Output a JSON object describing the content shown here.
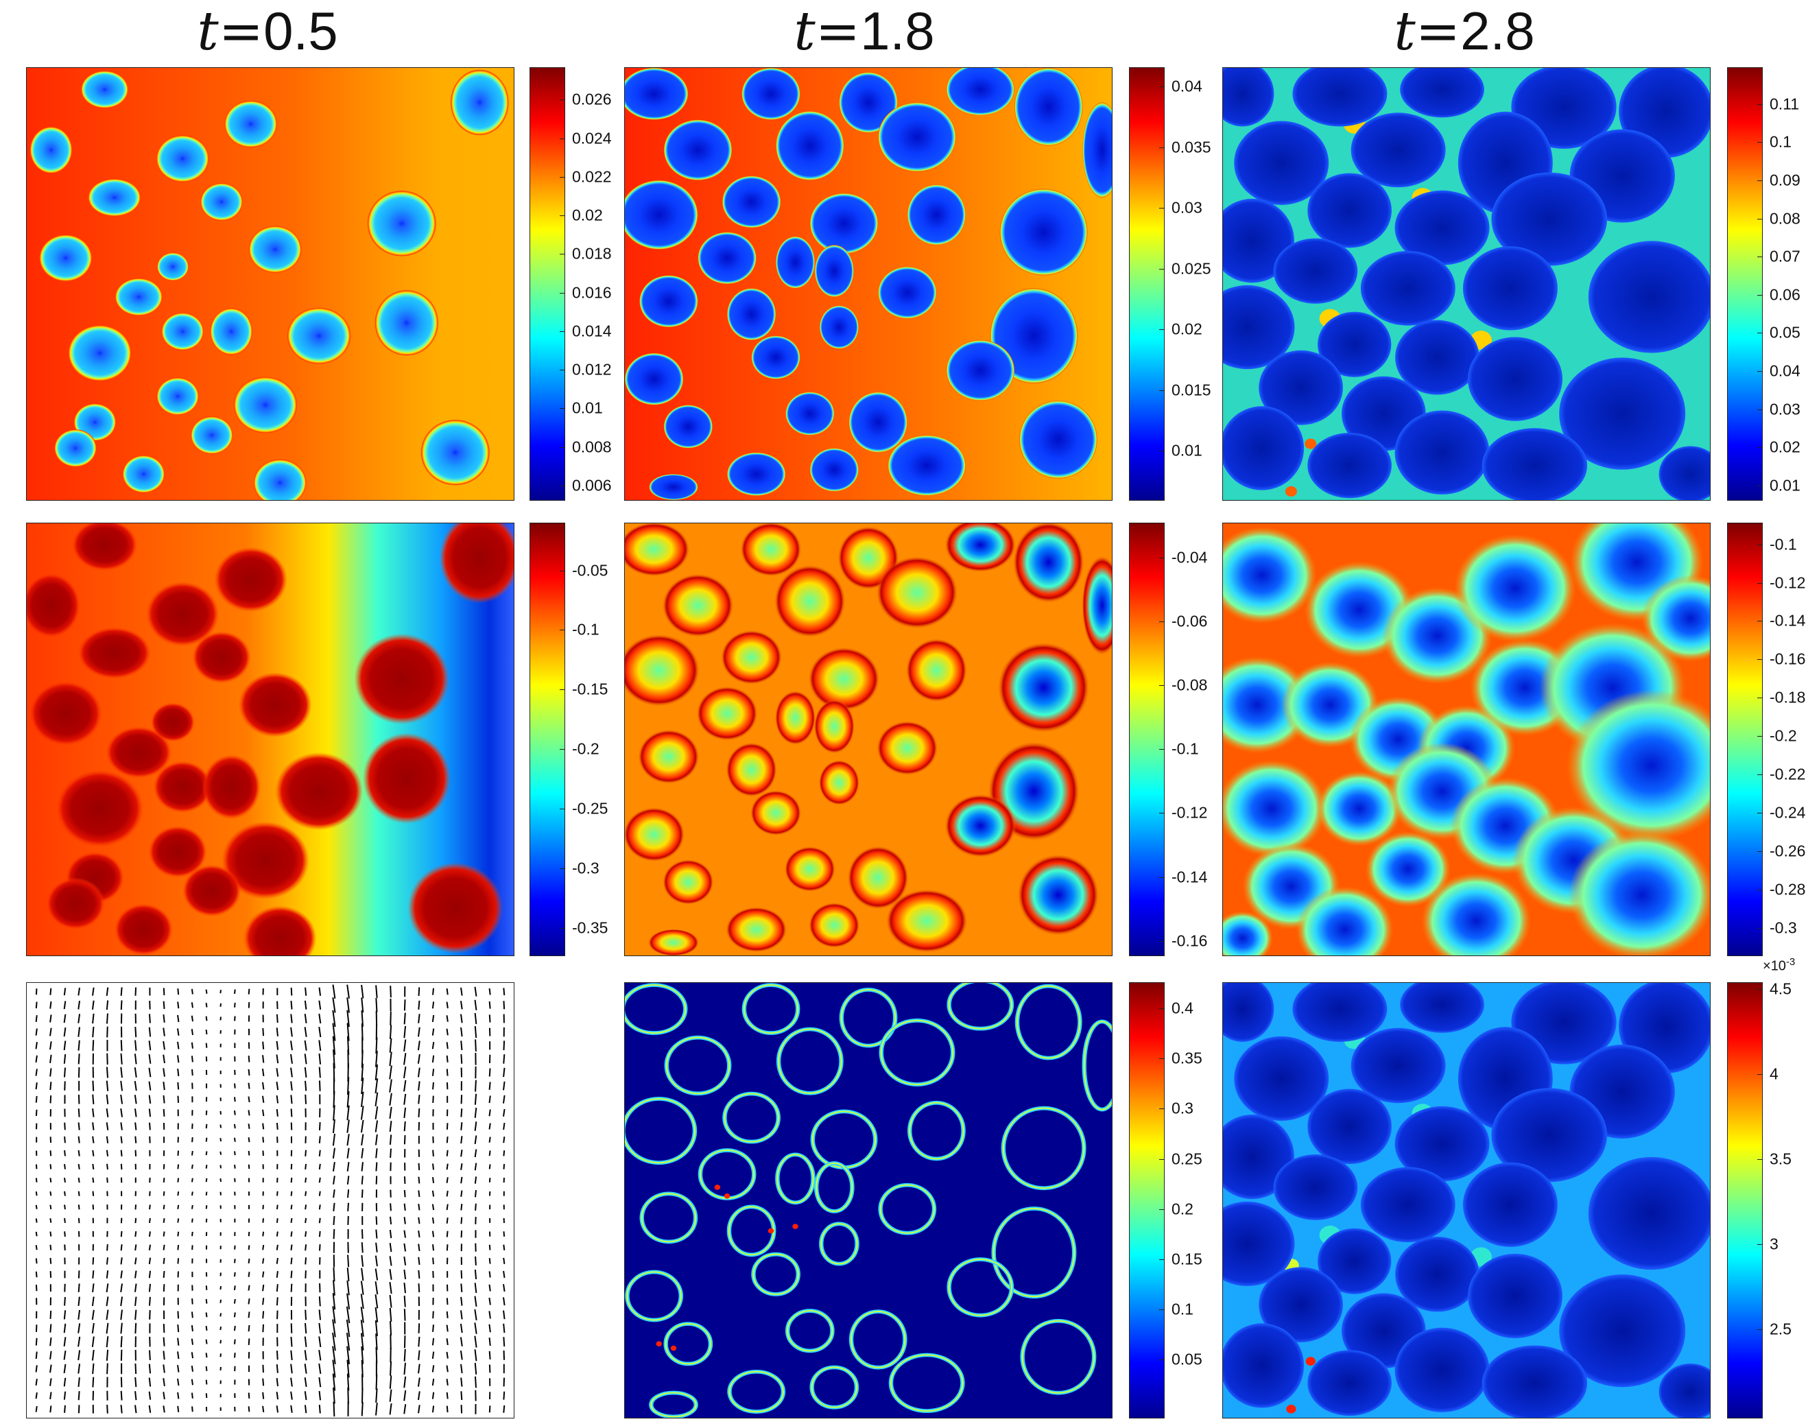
{
  "titles": [
    {
      "var": "t",
      "eq": "=",
      "value": "0.5"
    },
    {
      "var": "t",
      "eq": "=",
      "value": "1.8"
    },
    {
      "var": "t",
      "eq": "=",
      "value": "2.8"
    }
  ],
  "colorbars": [
    {
      "id": "r1c1",
      "ticks": [
        "0.026",
        "0.024",
        "0.022",
        "0.02",
        "0.018",
        "0.016",
        "0.014",
        "0.012",
        "0.01",
        "0.008",
        "0.006"
      ]
    },
    {
      "id": "r1c2",
      "ticks": [
        "0.04",
        "0.035",
        "0.03",
        "0.025",
        "0.02",
        "0.015",
        "0.01"
      ]
    },
    {
      "id": "r1c3",
      "ticks": [
        "0.11",
        "0.1",
        "0.09",
        "0.08",
        "0.07",
        "0.06",
        "0.05",
        "0.04",
        "0.03",
        "0.02",
        "0.01"
      ]
    },
    {
      "id": "r2c1",
      "ticks": [
        "-0.05",
        "-0.1",
        "-0.15",
        "-0.2",
        "-0.25",
        "-0.3",
        "-0.35"
      ]
    },
    {
      "id": "r2c2",
      "ticks": [
        "-0.04",
        "-0.06",
        "-0.08",
        "-0.1",
        "-0.12",
        "-0.14",
        "-0.16"
      ]
    },
    {
      "id": "r2c3",
      "ticks": [
        "-0.1",
        "-0.12",
        "-0.14",
        "-0.16",
        "-0.18",
        "-0.2",
        "-0.22",
        "-0.24",
        "-0.26",
        "-0.28",
        "-0.3"
      ]
    },
    {
      "id": "r3c2",
      "ticks": [
        "0.4",
        "0.35",
        "0.3",
        "0.25",
        "0.2",
        "0.15",
        "0.1",
        "0.05"
      ]
    },
    {
      "id": "r3c3",
      "ticks": [
        "4.5",
        "4",
        "3.5",
        "3",
        "2.5"
      ],
      "exponent": "10",
      "exponent_power": "-3"
    }
  ],
  "colormap": {
    "name": "jet",
    "stops": [
      "#00008f",
      "#0000ff",
      "#0080ff",
      "#00ffff",
      "#80ff80",
      "#ffff00",
      "#ff8000",
      "#ff0000",
      "#800000"
    ]
  }
}
